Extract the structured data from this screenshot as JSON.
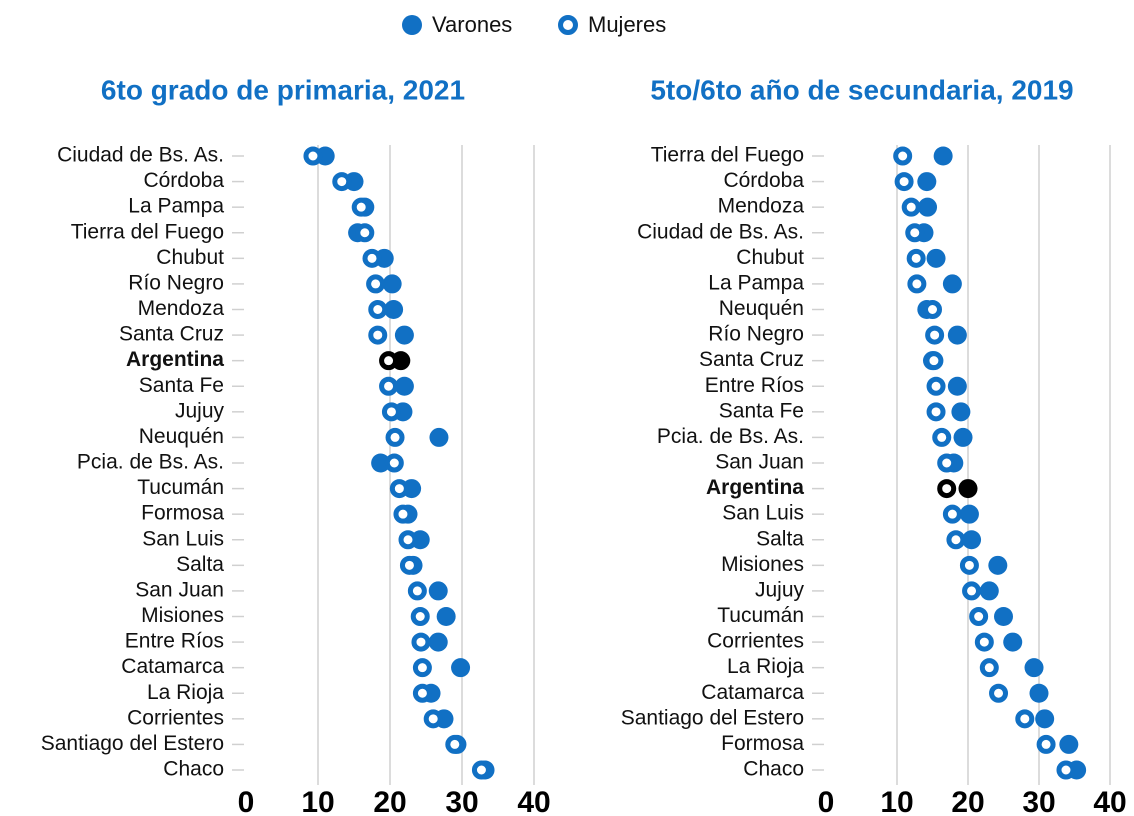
{
  "chart_data": [
    {
      "type": "dot",
      "title": "6to grado de primaria, 2021",
      "categories": [
        "Ciudad de Bs. As.",
        "Córdoba",
        "La Pampa",
        "Tierra del Fuego",
        "Chubut",
        "Río Negro",
        "Mendoza",
        "Santa Cruz",
        "Argentina",
        "Santa Fe",
        "Jujuy",
        "Neuquén",
        "Pcia. de Bs. As.",
        "Tucumán",
        "Formosa",
        "San Luis",
        "Salta",
        "San Juan",
        "Misiones",
        "Entre Ríos",
        "Catamarca",
        "La Rioja",
        "Corrientes",
        "Santiago del Estero",
        "Chaco"
      ],
      "series": [
        {
          "name": "Varones",
          "color": "#1170c4",
          "marker": "filled",
          "values": [
            11,
            15,
            16.5,
            15.5,
            19.2,
            20.3,
            20.5,
            22,
            21.5,
            22,
            21.8,
            26.8,
            18.7,
            23,
            22.5,
            24.2,
            23.2,
            26.7,
            27.8,
            26.7,
            29.8,
            25.7,
            27.5,
            29.3,
            33.2
          ]
        },
        {
          "name": "Mujeres",
          "color": "#1170c4",
          "marker": "hollow",
          "values": [
            9.3,
            13.3,
            16,
            16.5,
            17.5,
            18,
            18.3,
            18.3,
            19.8,
            19.8,
            20.2,
            20.7,
            20.6,
            21.3,
            21.8,
            22.5,
            22.7,
            23.8,
            24.2,
            24.3,
            24.5,
            24.5,
            26,
            29,
            32.7
          ]
        }
      ],
      "highlight_category": "Argentina",
      "highlight_color": "#000000",
      "xlim": [
        0,
        40
      ],
      "xticks": [
        0,
        10,
        20,
        30,
        40
      ],
      "grid": true
    },
    {
      "type": "dot",
      "title": "5to/6to año de secundaria, 2019",
      "categories": [
        "Tierra del Fuego",
        "Córdoba",
        "Mendoza",
        "Ciudad de Bs. As.",
        "Chubut",
        "La Pampa",
        "Neuquén",
        "Río Negro",
        "Santa Cruz",
        "Entre Ríos",
        "Santa Fe",
        "Pcia. de Bs. As.",
        "San Juan",
        "Argentina",
        "San Luis",
        "Salta",
        "Misiones",
        "Jujuy",
        "Tucumán",
        "Corrientes",
        "La Rioja",
        "Catamarca",
        "Santiago del Estero",
        "Formosa",
        "Chaco"
      ],
      "series": [
        {
          "name": "Varones",
          "color": "#1170c4",
          "marker": "filled",
          "values": [
            16.5,
            14.2,
            14.3,
            13.8,
            15.5,
            17.8,
            14.2,
            18.5,
            15,
            18.5,
            19,
            19.3,
            18,
            20,
            20.2,
            20.5,
            24.2,
            23,
            25,
            26.3,
            29.3,
            30,
            30.8,
            34.2,
            35.3
          ]
        },
        {
          "name": "Mujeres",
          "color": "#1170c4",
          "marker": "hollow",
          "values": [
            10.8,
            11,
            12,
            12.5,
            12.7,
            12.8,
            15,
            15.3,
            15.2,
            15.5,
            15.5,
            16.3,
            17,
            17,
            17.8,
            18.3,
            20.2,
            20.5,
            21.5,
            22.3,
            23,
            24.3,
            28,
            31,
            33.8
          ]
        }
      ],
      "highlight_category": "Argentina",
      "highlight_color": "#000000",
      "xlim": [
        0,
        40
      ],
      "xticks": [
        0,
        10,
        20,
        30,
        40
      ],
      "grid": true
    }
  ]
}
